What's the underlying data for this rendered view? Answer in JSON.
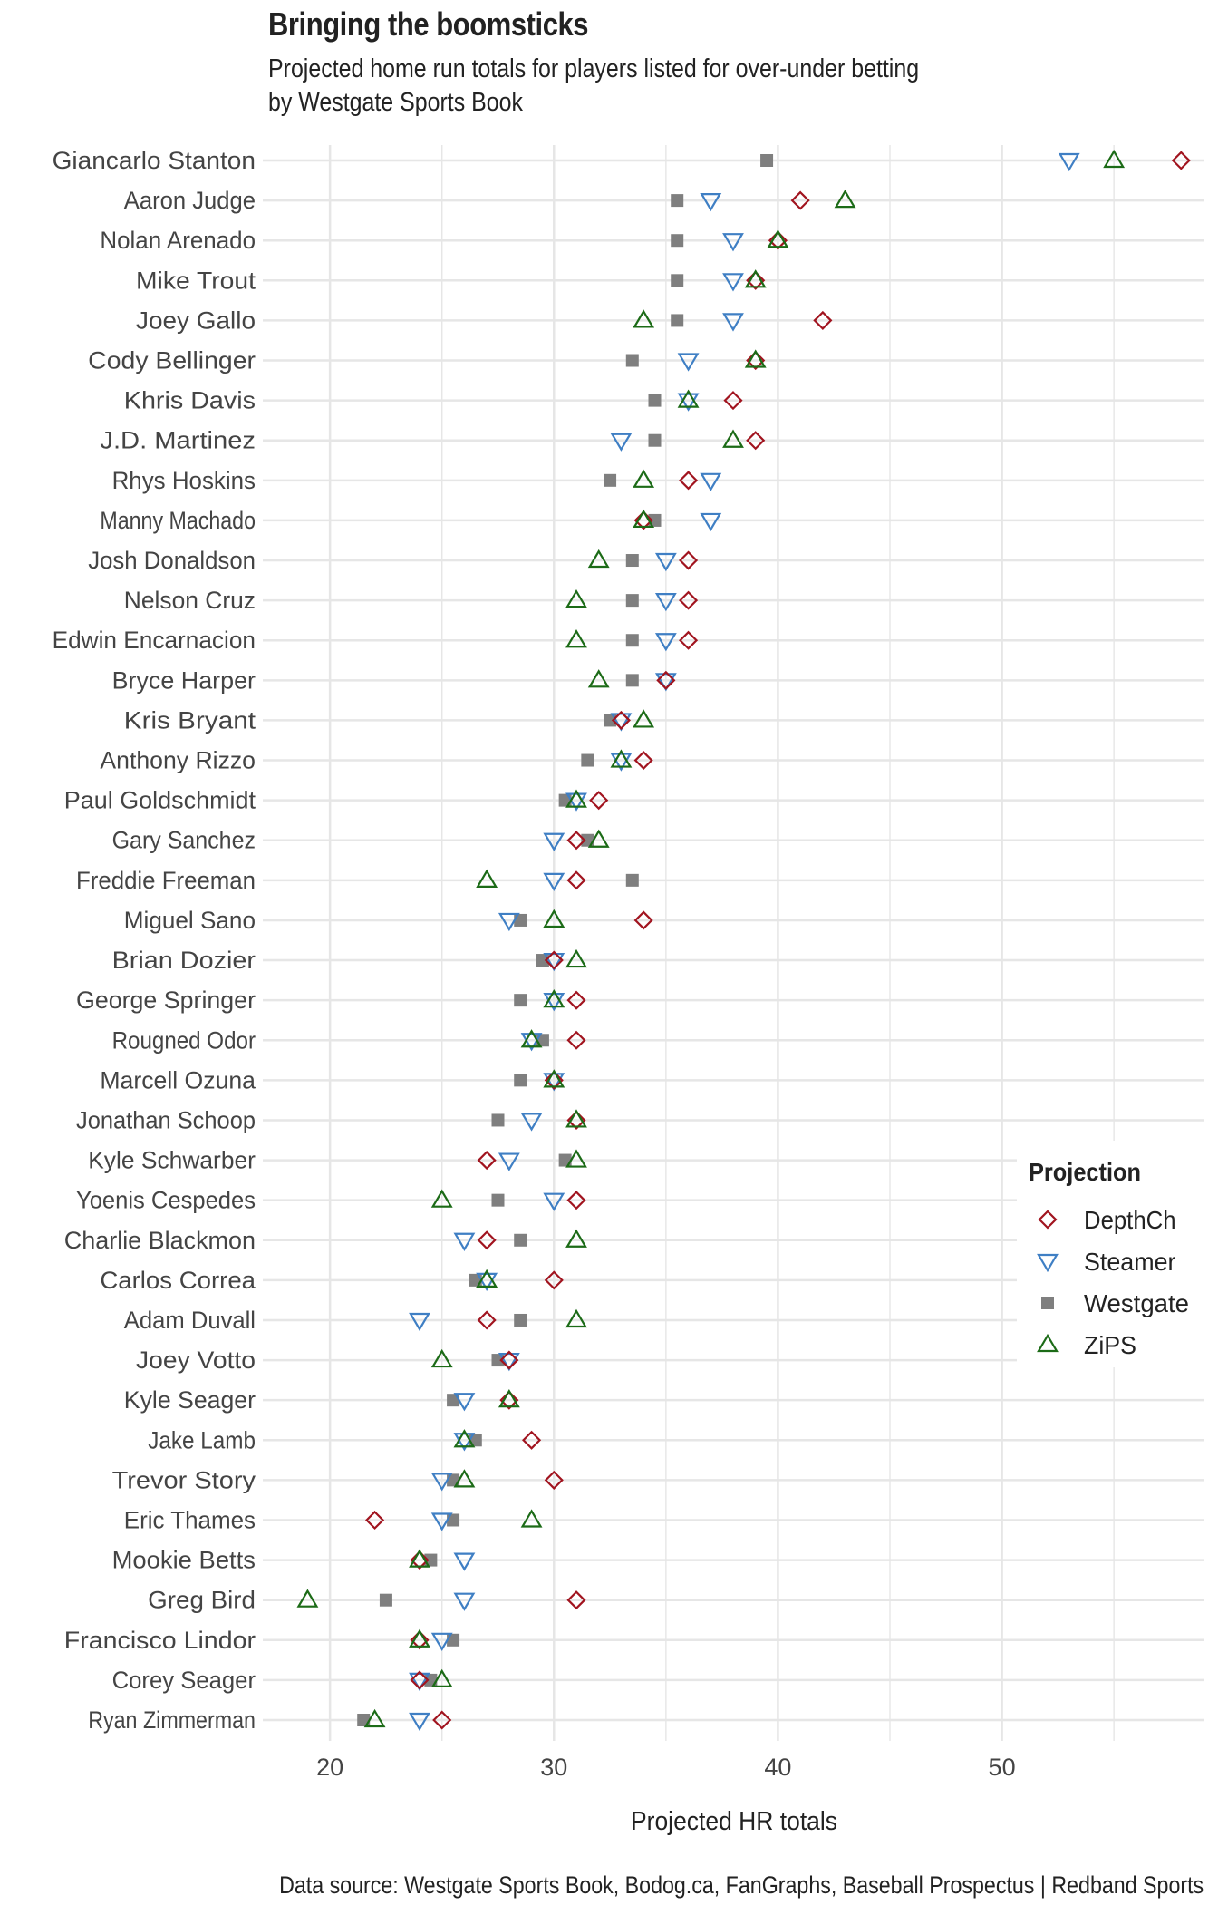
{
  "title": "Bringing the boomsticks",
  "subtitle_lines": [
    "Projected home run totals for players listed for over-under betting",
    "by Westgate Sports Book"
  ],
  "caption": "Data source: Westgate Sports Book, Bodog.ca, FanGraphs, Baseball Prospectus  |  Redband Sports",
  "colors": {
    "DepthCh": "#a1141f",
    "Steamer": "#3f7fc4",
    "Westgate": "#7f7f7f",
    "ZiPS": "#1c6b17",
    "grid": "#e6e6e6"
  },
  "chart_data": {
    "type": "scatter",
    "title": "Bringing the boomsticks",
    "xlabel": "Projected HR totals",
    "ylabel": "",
    "xlim": [
      17,
      59
    ],
    "xticks": [
      20,
      30,
      40,
      50
    ],
    "grid": true,
    "legend": {
      "title": "Projection",
      "position": "right",
      "entries": [
        "DepthCh",
        "Steamer",
        "Westgate",
        "ZiPS"
      ]
    },
    "categories": [
      "Giancarlo Stanton",
      "Aaron Judge",
      "Nolan Arenado",
      "Mike Trout",
      "Joey Gallo",
      "Cody Bellinger",
      "Khris Davis",
      "J.D. Martinez",
      "Rhys Hoskins",
      "Manny Machado",
      "Josh Donaldson",
      "Nelson Cruz",
      "Edwin Encarnacion",
      "Bryce Harper",
      "Kris Bryant",
      "Anthony Rizzo",
      "Paul Goldschmidt",
      "Gary Sanchez",
      "Freddie Freeman",
      "Miguel Sano",
      "Brian Dozier",
      "George Springer",
      "Rougned Odor",
      "Marcell Ozuna",
      "Jonathan Schoop",
      "Kyle Schwarber",
      "Yoenis Cespedes",
      "Charlie Blackmon",
      "Carlos Correa",
      "Adam Duvall",
      "Joey Votto",
      "Kyle Seager",
      "Jake Lamb",
      "Trevor Story",
      "Eric Thames",
      "Mookie Betts",
      "Greg Bird",
      "Francisco Lindor",
      "Corey Seager",
      "Ryan Zimmerman"
    ],
    "series": [
      {
        "name": "DepthCh",
        "marker": "diamond",
        "values": [
          58,
          41,
          40,
          39,
          42,
          39,
          38,
          39,
          36,
          34,
          36,
          36,
          36,
          35,
          33,
          34,
          32,
          31,
          31,
          34,
          30,
          31,
          31,
          30,
          31,
          27,
          31,
          27,
          30,
          27,
          28,
          28,
          29,
          30,
          22,
          24,
          31,
          24,
          24,
          25
        ]
      },
      {
        "name": "Steamer",
        "marker": "triangle-down",
        "values": [
          53,
          37,
          38,
          38,
          38,
          36,
          36,
          33,
          37,
          37,
          35,
          35,
          35,
          35,
          33,
          33,
          31,
          30,
          30,
          28,
          30,
          30,
          29,
          30,
          29,
          28,
          30,
          26,
          27,
          24,
          28,
          26,
          26,
          25,
          25,
          26,
          26,
          25,
          24,
          24
        ]
      },
      {
        "name": "Westgate",
        "marker": "square",
        "values": [
          39.5,
          35.5,
          35.5,
          35.5,
          35.5,
          33.5,
          34.5,
          34.5,
          32.5,
          34.5,
          33.5,
          33.5,
          33.5,
          33.5,
          32.5,
          31.5,
          30.5,
          31.5,
          33.5,
          28.5,
          29.5,
          28.5,
          29.5,
          28.5,
          27.5,
          30.5,
          27.5,
          28.5,
          26.5,
          28.5,
          27.5,
          25.5,
          26.5,
          25.5,
          25.5,
          24.5,
          22.5,
          25.5,
          24.5,
          21.5
        ]
      },
      {
        "name": "ZiPS",
        "marker": "triangle-up",
        "values": [
          55,
          43,
          40,
          39,
          34,
          39,
          36,
          38,
          34,
          34,
          32,
          31,
          31,
          32,
          34,
          33,
          31,
          32,
          27,
          30,
          31,
          30,
          29,
          30,
          31,
          31,
          25,
          31,
          27,
          31,
          25,
          28,
          26,
          26,
          29,
          24,
          19,
          24,
          25,
          22
        ]
      }
    ]
  }
}
